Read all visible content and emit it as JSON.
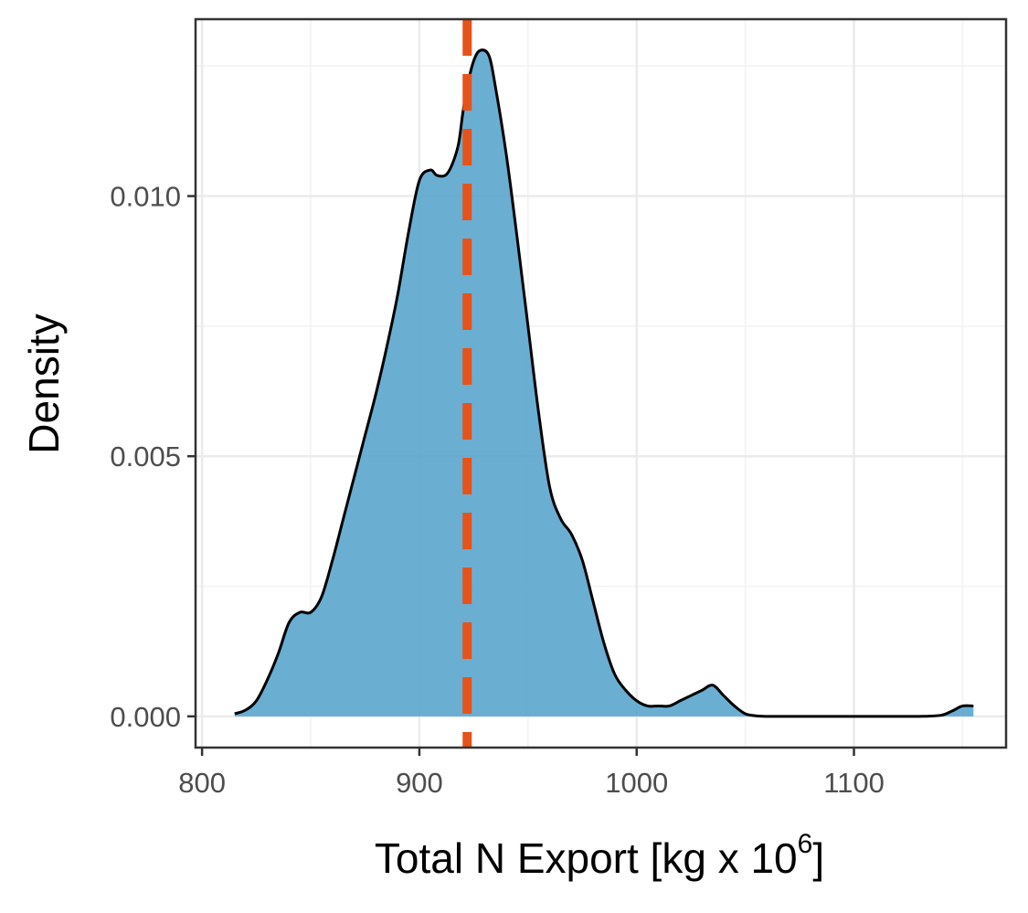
{
  "chart_data": {
    "type": "area",
    "subtype": "density",
    "title": "",
    "xlabel": "Total N Export [kg x 10",
    "xlabel_superscript": "6",
    "xlabel_suffix": "]",
    "ylabel": "Density",
    "xlim": [
      797,
      1170
    ],
    "ylim": [
      -0.0006,
      0.0134
    ],
    "x_ticks": [
      800,
      900,
      1000,
      1100
    ],
    "x_tick_labels": [
      "800",
      "900",
      "1000",
      "1100"
    ],
    "y_ticks": [
      0.0,
      0.005,
      0.01
    ],
    "y_tick_labels": [
      "0.000",
      "0.005",
      "0.010"
    ],
    "grid": true,
    "legend": "none",
    "fill_color": "#5aa5cd",
    "line_color": "#000000",
    "reference_line": {
      "x": 922,
      "style": "dashed",
      "color": "#e5531a"
    },
    "series": [
      {
        "x": [
          815,
          820,
          825,
          830,
          835,
          840,
          845,
          850,
          855,
          860,
          865,
          870,
          875,
          880,
          885,
          890,
          895,
          900,
          905,
          908,
          912,
          915,
          918,
          920,
          922,
          925,
          928,
          932,
          935,
          940,
          945,
          950,
          955,
          960,
          965,
          970,
          975,
          980,
          985,
          990,
          995,
          1000,
          1005,
          1010,
          1015,
          1020,
          1025,
          1030,
          1035,
          1040,
          1045,
          1050,
          1055,
          1060,
          1070,
          1080,
          1090,
          1100,
          1110,
          1120,
          1130,
          1140,
          1145,
          1150,
          1155
        ],
        "y": [
          5e-05,
          0.00012,
          0.0003,
          0.0007,
          0.0012,
          0.0018,
          0.002,
          0.002,
          0.0023,
          0.003,
          0.0038,
          0.0046,
          0.0054,
          0.0062,
          0.0071,
          0.0081,
          0.0093,
          0.0103,
          0.0105,
          0.0104,
          0.0104,
          0.0106,
          0.011,
          0.0116,
          0.0121,
          0.0126,
          0.0128,
          0.0127,
          0.0121,
          0.0108,
          0.0092,
          0.0075,
          0.0058,
          0.0044,
          0.0038,
          0.0035,
          0.003,
          0.0022,
          0.0014,
          0.0008,
          0.0005,
          0.0003,
          0.0002,
          0.0002,
          0.0002,
          0.0003,
          0.0004,
          0.0005,
          0.0006,
          0.0004,
          0.0002,
          5e-05,
          1e-05,
          0.0,
          0.0,
          0.0,
          0.0,
          0.0,
          0.0,
          0.0,
          0.0,
          2e-05,
          0.0001,
          0.0002,
          0.0002
        ]
      }
    ]
  }
}
